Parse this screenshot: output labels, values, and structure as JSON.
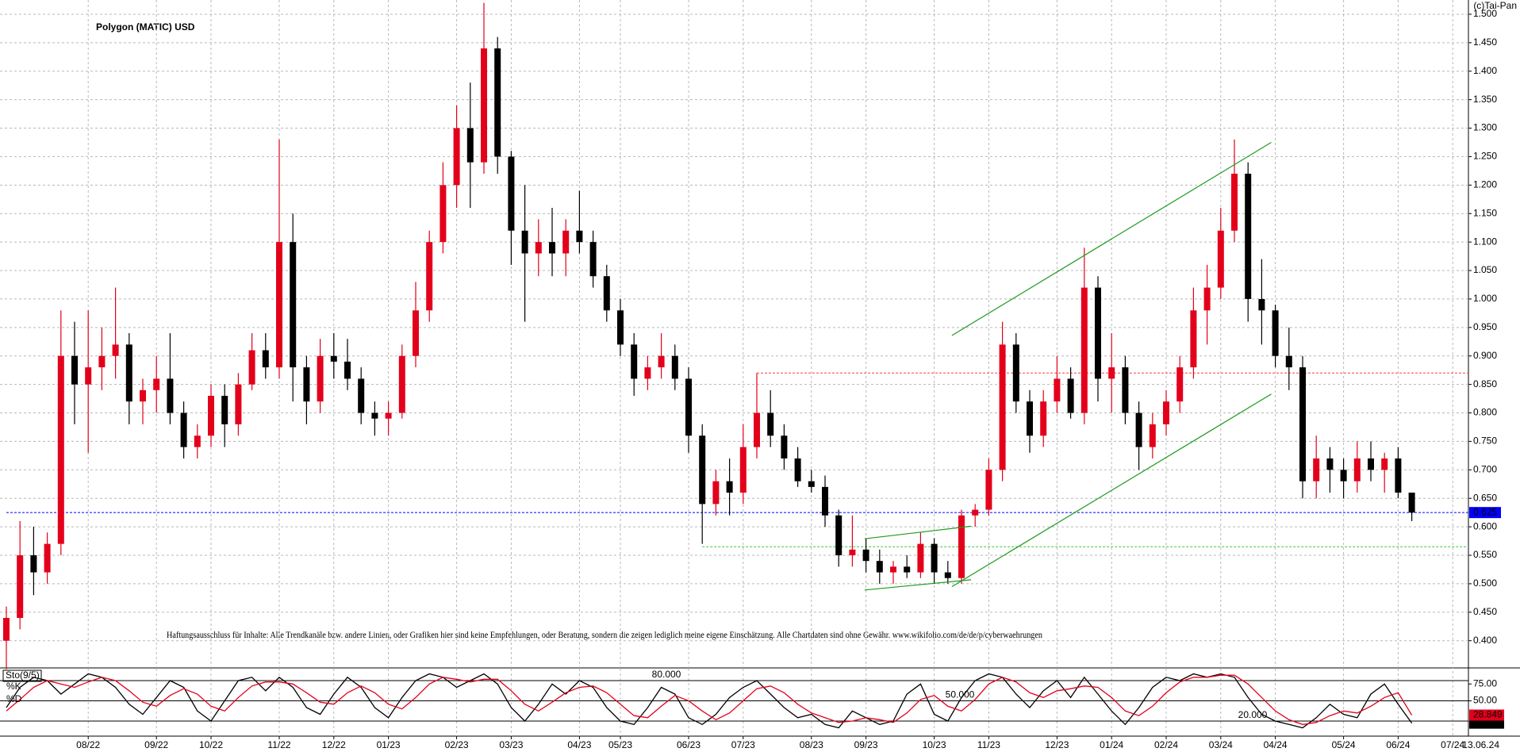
{
  "chart_data": [
    {
      "type": "candlestick",
      "title": "Polygon (MATIC) USD",
      "source": "(c)Tai-Pan",
      "annotation": "Haftungsausschluss für Inhalte: Alle Trendkanäle bzw. andere Linien, oder Grafiken hier sind keine Empfehlungen, oder Beratung, sondern die zeigen lediglich meine eigene Einschätzung. Alle Chartdaten sind ohne Gewähr.  www.wikifolio.com/de/de/p/cyberwaehrungen",
      "categories": [
        null,
        null,
        null,
        null,
        null,
        null,
        "08/22",
        null,
        null,
        null,
        null,
        "09/22",
        null,
        null,
        null,
        "10/22",
        null,
        null,
        null,
        null,
        "11/22",
        null,
        null,
        null,
        "12/22",
        null,
        null,
        null,
        "01/23",
        null,
        null,
        null,
        null,
        "02/23",
        null,
        null,
        null,
        "03/23",
        null,
        null,
        null,
        null,
        "04/23",
        null,
        null,
        "05/23",
        null,
        null,
        null,
        null,
        "06/23",
        null,
        null,
        null,
        "07/23",
        null,
        null,
        null,
        null,
        "08/23",
        null,
        null,
        null,
        "09/23",
        null,
        null,
        null,
        null,
        "10/23",
        null,
        null,
        null,
        "11/23",
        null,
        null,
        null,
        null,
        "12/23",
        null,
        null,
        null,
        "01/24",
        null,
        null,
        null,
        "02/24",
        null,
        null,
        null,
        "03/24",
        null,
        null,
        null,
        "04/24",
        null,
        null,
        null,
        null,
        "05/24",
        null,
        null,
        null,
        "06/24",
        null
      ],
      "future_categories": [
        "07/24"
      ],
      "last_date": "13.06.24",
      "open": [
        0.4,
        0.44,
        0.55,
        0.52,
        0.57,
        0.9,
        0.85,
        0.88,
        0.9,
        0.92,
        0.82,
        0.84,
        0.86,
        0.8,
        0.74,
        0.76,
        0.83,
        0.78,
        0.85,
        0.91,
        0.88,
        1.1,
        0.88,
        0.82,
        0.9,
        0.89,
        0.86,
        0.8,
        0.79,
        0.8,
        0.9,
        0.98,
        1.1,
        1.2,
        1.3,
        1.24,
        1.44,
        1.25,
        1.12,
        1.08,
        1.1,
        1.08,
        1.12,
        1.1,
        1.04,
        0.98,
        0.92,
        0.86,
        0.88,
        0.9,
        0.86,
        0.76,
        0.64,
        0.68,
        0.66,
        0.74,
        0.8,
        0.76,
        0.72,
        0.68,
        0.67,
        0.62,
        0.55,
        0.56,
        0.54,
        0.52,
        0.53,
        0.52,
        0.57,
        0.52,
        0.51,
        0.62,
        0.63,
        0.7,
        0.92,
        0.82,
        0.76,
        0.82,
        0.86,
        0.8,
        1.02,
        0.86,
        0.88,
        0.8,
        0.74,
        0.78,
        0.82,
        0.88,
        0.98,
        1.02,
        1.12,
        1.22,
        1.0,
        0.98,
        0.9,
        0.88,
        0.68,
        0.72,
        0.7,
        0.68,
        0.72,
        0.7,
        0.72,
        0.66
      ],
      "high": [
        0.46,
        0.61,
        0.6,
        0.59,
        0.98,
        0.96,
        0.98,
        0.95,
        1.02,
        0.94,
        0.86,
        0.9,
        0.94,
        0.82,
        0.78,
        0.85,
        0.85,
        0.87,
        0.94,
        0.94,
        1.28,
        1.15,
        0.9,
        0.93,
        0.94,
        0.93,
        0.88,
        0.82,
        0.82,
        0.92,
        1.03,
        1.12,
        1.24,
        1.34,
        1.38,
        1.52,
        1.46,
        1.26,
        1.2,
        1.14,
        1.16,
        1.14,
        1.19,
        1.12,
        1.06,
        1.0,
        0.94,
        0.9,
        0.94,
        0.92,
        0.88,
        0.78,
        0.7,
        0.72,
        0.78,
        0.87,
        0.84,
        0.78,
        0.74,
        0.7,
        0.69,
        0.63,
        0.62,
        0.58,
        0.56,
        0.54,
        0.55,
        0.59,
        0.58,
        0.54,
        0.63,
        0.64,
        0.72,
        0.96,
        0.94,
        0.84,
        0.84,
        0.9,
        0.88,
        1.09,
        1.04,
        0.94,
        0.9,
        0.82,
        0.8,
        0.84,
        0.9,
        1.02,
        1.06,
        1.16,
        1.28,
        1.24,
        1.07,
        0.99,
        0.95,
        0.9,
        0.76,
        0.74,
        0.72,
        0.75,
        0.75,
        0.73,
        0.74,
        0.66
      ],
      "low": [
        0.35,
        0.42,
        0.48,
        0.5,
        0.55,
        0.78,
        0.73,
        0.84,
        0.86,
        0.78,
        0.78,
        0.8,
        0.78,
        0.72,
        0.72,
        0.74,
        0.74,
        0.76,
        0.84,
        0.86,
        0.86,
        0.82,
        0.78,
        0.8,
        0.86,
        0.84,
        0.78,
        0.76,
        0.76,
        0.79,
        0.88,
        0.96,
        1.08,
        1.16,
        1.16,
        1.22,
        1.22,
        1.06,
        0.96,
        1.04,
        1.04,
        1.04,
        1.08,
        1.02,
        0.96,
        0.9,
        0.83,
        0.84,
        0.86,
        0.84,
        0.73,
        0.57,
        0.62,
        0.62,
        0.64,
        0.72,
        0.74,
        0.7,
        0.67,
        0.66,
        0.6,
        0.53,
        0.53,
        0.52,
        0.5,
        0.5,
        0.51,
        0.51,
        0.5,
        0.5,
        0.5,
        0.6,
        0.62,
        0.68,
        0.8,
        0.73,
        0.74,
        0.8,
        0.79,
        0.78,
        0.82,
        0.8,
        0.78,
        0.7,
        0.72,
        0.76,
        0.8,
        0.86,
        0.92,
        1.0,
        1.1,
        0.96,
        0.92,
        0.88,
        0.84,
        0.65,
        0.65,
        0.66,
        0.65,
        0.66,
        0.68,
        0.66,
        0.65,
        0.61
      ],
      "close": [
        0.44,
        0.55,
        0.52,
        0.57,
        0.9,
        0.85,
        0.88,
        0.9,
        0.92,
        0.82,
        0.84,
        0.86,
        0.8,
        0.74,
        0.76,
        0.83,
        0.78,
        0.85,
        0.91,
        0.88,
        1.1,
        0.88,
        0.82,
        0.9,
        0.89,
        0.86,
        0.8,
        0.79,
        0.8,
        0.9,
        0.98,
        1.1,
        1.2,
        1.3,
        1.24,
        1.44,
        1.25,
        1.12,
        1.08,
        1.1,
        1.08,
        1.12,
        1.1,
        1.04,
        0.98,
        0.92,
        0.86,
        0.88,
        0.9,
        0.86,
        0.76,
        0.64,
        0.68,
        0.66,
        0.74,
        0.8,
        0.76,
        0.72,
        0.68,
        0.67,
        0.62,
        0.55,
        0.56,
        0.54,
        0.52,
        0.53,
        0.52,
        0.57,
        0.52,
        0.51,
        0.62,
        0.63,
        0.7,
        0.92,
        0.82,
        0.76,
        0.82,
        0.86,
        0.8,
        1.02,
        0.86,
        0.88,
        0.8,
        0.74,
        0.78,
        0.82,
        0.88,
        0.98,
        1.02,
        1.12,
        1.22,
        1.0,
        0.98,
        0.9,
        0.88,
        0.68,
        0.72,
        0.7,
        0.68,
        0.72,
        0.7,
        0.72,
        0.66,
        0.625
      ],
      "up_color": "#e3001b",
      "down_color": "#000000",
      "ylim": [
        0.355,
        1.525
      ],
      "yticks": [
        {
          "value": 0.4,
          "label": "0.400"
        },
        {
          "value": 0.45,
          "label": "0.450"
        },
        {
          "value": 0.5,
          "label": "0.500"
        },
        {
          "value": 0.55,
          "label": "0.550"
        },
        {
          "value": 0.6,
          "label": "0.600"
        },
        {
          "value": 0.65,
          "label": "0.650"
        },
        {
          "value": 0.7,
          "label": "0.700"
        },
        {
          "value": 0.75,
          "label": "0.750"
        },
        {
          "value": 0.8,
          "label": "0.800"
        },
        {
          "value": 0.85,
          "label": "0.850"
        },
        {
          "value": 0.9,
          "label": "0.900"
        },
        {
          "value": 0.95,
          "label": "0.950"
        },
        {
          "value": 1.0,
          "label": "1.000"
        },
        {
          "value": 1.05,
          "label": "1.050"
        },
        {
          "value": 1.1,
          "label": "1.100"
        },
        {
          "value": 1.15,
          "label": "1.150"
        },
        {
          "value": 1.2,
          "label": "1.200"
        },
        {
          "value": 1.25,
          "label": "1.250"
        },
        {
          "value": 1.3,
          "label": "1.300"
        },
        {
          "value": 1.35,
          "label": "1.350"
        },
        {
          "value": 1.4,
          "label": "1.400"
        },
        {
          "value": 1.45,
          "label": "1.450"
        },
        {
          "value": 1.5,
          "label": "1.500"
        }
      ],
      "grid": true,
      "levels": [
        {
          "value": 0.625,
          "color": "#0000ff",
          "start": 0,
          "show_label": true
        },
        {
          "value": 0.87,
          "color": "#ff4040",
          "start": 55,
          "show_label": false
        },
        {
          "value": 0.565,
          "color": "#33cc33",
          "start": 51,
          "show_label": false
        }
      ],
      "trendlines": [
        {
          "x": [
            69.3,
            92.7
          ],
          "y": [
            0.936,
            1.275
          ],
          "color": "#1f9a1f"
        },
        {
          "x": [
            69.3,
            92.7
          ],
          "y": [
            0.495,
            0.833
          ],
          "color": "#1f9a1f"
        },
        {
          "x": [
            62.9,
            70.7
          ],
          "y": [
            0.579,
            0.601
          ],
          "color": "#1f9a1f"
        },
        {
          "x": [
            62.9,
            70.7
          ],
          "y": [
            0.489,
            0.507
          ],
          "color": "#1f9a1f"
        }
      ]
    },
    {
      "type": "line",
      "title": "Sto(9/5)",
      "series": [
        {
          "name": "%K",
          "color": "#000000",
          "values": [
            40,
            70,
            85,
            80,
            60,
            75,
            90,
            85,
            70,
            45,
            30,
            55,
            80,
            70,
            35,
            20,
            50,
            80,
            85,
            65,
            85,
            70,
            40,
            30,
            60,
            85,
            70,
            40,
            25,
            55,
            80,
            90,
            85,
            70,
            80,
            90,
            75,
            40,
            20,
            45,
            75,
            60,
            80,
            70,
            40,
            20,
            15,
            40,
            70,
            60,
            25,
            15,
            30,
            55,
            70,
            80,
            60,
            40,
            25,
            30,
            15,
            10,
            35,
            25,
            15,
            20,
            60,
            75,
            30,
            20,
            55,
            80,
            90,
            85,
            60,
            40,
            65,
            80,
            55,
            85,
            60,
            35,
            15,
            40,
            70,
            85,
            80,
            90,
            85,
            90,
            85,
            55,
            30,
            20,
            15,
            10,
            25,
            45,
            30,
            25,
            60,
            75,
            45,
            16.923
          ]
        },
        {
          "name": "%D",
          "color": "#e3001b",
          "values": [
            35,
            52,
            70,
            80,
            75,
            70,
            78,
            85,
            80,
            65,
            48,
            42,
            58,
            68,
            60,
            42,
            35,
            55,
            72,
            78,
            78,
            75,
            62,
            48,
            45,
            62,
            72,
            62,
            45,
            38,
            55,
            75,
            85,
            82,
            78,
            82,
            82,
            65,
            45,
            35,
            48,
            62,
            70,
            72,
            62,
            45,
            28,
            25,
            42,
            58,
            50,
            35,
            22,
            32,
            50,
            68,
            72,
            62,
            45,
            32,
            25,
            18,
            20,
            25,
            22,
            18,
            32,
            52,
            58,
            42,
            35,
            52,
            75,
            85,
            78,
            62,
            55,
            65,
            68,
            72,
            70,
            55,
            35,
            28,
            42,
            62,
            78,
            85,
            85,
            88,
            88,
            75,
            55,
            35,
            22,
            15,
            18,
            28,
            35,
            32,
            42,
            55,
            62,
            28.849
          ]
        }
      ],
      "ylim": [
        0,
        100
      ],
      "yticks": [
        {
          "value": 50,
          "label": "50.00"
        },
        {
          "value": 75,
          "label": "75.00"
        }
      ],
      "levels": [
        {
          "value": 80,
          "label": "80.000"
        },
        {
          "value": 50,
          "label": "50.000"
        },
        {
          "value": 20,
          "label": "20.000"
        }
      ]
    }
  ]
}
